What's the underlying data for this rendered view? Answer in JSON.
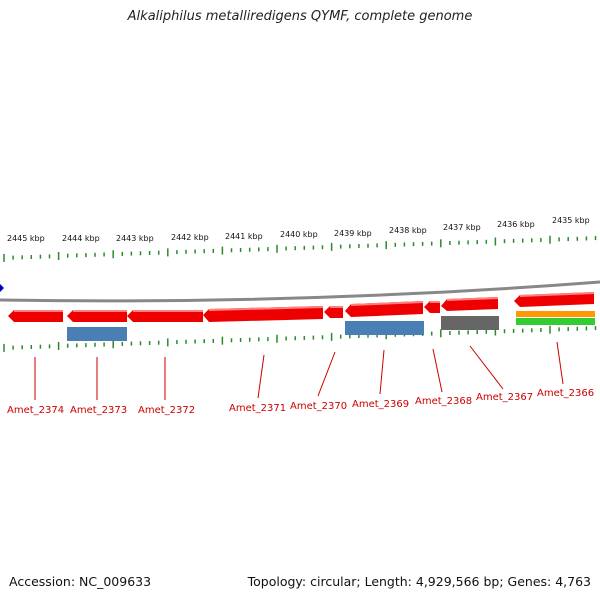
{
  "title": "Alkaliphilus metalliredigens QYMF, complete genome",
  "footer": {
    "accession": "Accession: NC_009633",
    "stats": "Topology: circular; Length: 4,929,566 bp; Genes: 4,763"
  },
  "ruler": [
    {
      "label": "2445 kbp"
    },
    {
      "label": "2444 kbp"
    },
    {
      "label": "2443 kbp"
    },
    {
      "label": "2442 kbp"
    },
    {
      "label": "2441 kbp"
    },
    {
      "label": "2440 kbp"
    },
    {
      "label": "2439 kbp"
    },
    {
      "label": "2438 kbp"
    },
    {
      "label": "2437 kbp"
    },
    {
      "label": "2436 kbp"
    },
    {
      "label": "2435 kbp"
    }
  ],
  "genes": [
    {
      "label": "Amet_2374",
      "color": "#ee0000"
    },
    {
      "label": "Amet_2373",
      "color": "#ee0000"
    },
    {
      "label": "Amet_2372",
      "color": "#ee0000"
    },
    {
      "label": "Amet_2371",
      "color": "#ee0000"
    },
    {
      "label": "Amet_2370",
      "color": "#ee0000"
    },
    {
      "label": "Amet_2369",
      "color": "#ee0000"
    },
    {
      "label": "Amet_2368",
      "color": "#ee0000"
    },
    {
      "label": "Amet_2367",
      "color": "#ee0000"
    },
    {
      "label": "Amet_2366",
      "color": "#ee0000"
    }
  ],
  "colors": {
    "cds": "#ee0000",
    "blue_feature": "#4a7fb5",
    "grey_feature": "#666666",
    "orange_feature": "#ff9900",
    "green_feature": "#33cc33",
    "backbone": "#888888",
    "tick": "#2a8a2a",
    "label": "#cc0000"
  }
}
